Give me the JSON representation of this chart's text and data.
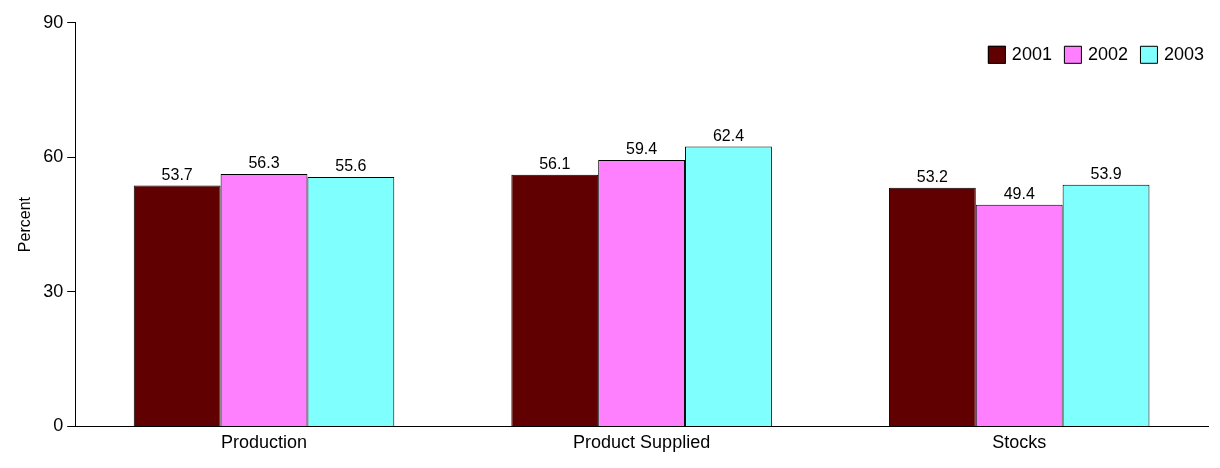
{
  "chart_data": {
    "type": "bar",
    "ylabel": "Percent",
    "categories": [
      "Production",
      "Product Supplied",
      "Stocks"
    ],
    "series": [
      {
        "name": "2001",
        "color": "#600000",
        "values": [
          53.7,
          56.1,
          53.2
        ]
      },
      {
        "name": "2002",
        "color": "#ff80ff",
        "values": [
          56.3,
          59.4,
          49.4
        ]
      },
      {
        "name": "2003",
        "color": "#80ffff",
        "values": [
          55.6,
          62.4,
          53.9
        ]
      }
    ],
    "ylim": [
      0,
      90
    ],
    "yticks": [
      0,
      30,
      60,
      90
    ],
    "grid": false,
    "legend": "top right",
    "data_labels": true
  }
}
